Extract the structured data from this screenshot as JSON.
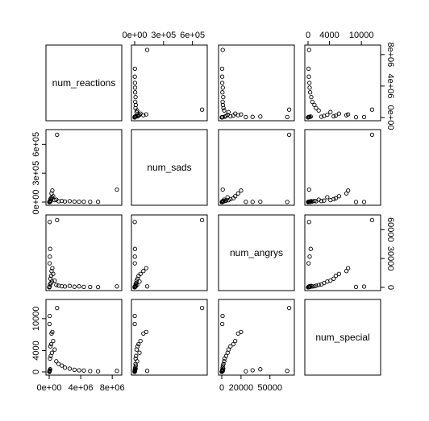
{
  "chart_data": {
    "type": "scatter",
    "subtype": "pairs-matrix",
    "variables": [
      "num_reactions",
      "num_sads",
      "num_angrys",
      "num_special"
    ],
    "ranges": {
      "num_reactions": [
        0,
        8800000
      ],
      "num_sads": [
        0,
        720000
      ],
      "num_angrys": [
        0,
        72000
      ],
      "num_special": [
        0,
        13000
      ]
    },
    "ticks": {
      "num_reactions": {
        "values": [
          0,
          4000000,
          8000000
        ],
        "labels": [
          "0e+00",
          "4e+06",
          "8e+06"
        ]
      },
      "num_sads": {
        "values": [
          0,
          300000,
          600000
        ],
        "labels": [
          "0e+00",
          "3e+05",
          "6e+05"
        ]
      },
      "num_angrys": {
        "values": [
          0,
          20000,
          50000
        ],
        "labels": [
          "0",
          "20000",
          "50000"
        ],
        "right_values": [
          0,
          30000,
          60000
        ],
        "right_labels": [
          "0",
          "30000",
          "60000"
        ]
      },
      "num_special": {
        "values": [
          0,
          4000,
          10000
        ],
        "labels": [
          "0",
          "4000",
          "10000"
        ]
      }
    },
    "points": [
      {
        "num_reactions": 8600000,
        "num_sads": 130000,
        "num_angrys": 1000,
        "num_special": 200
      },
      {
        "num_reactions": 1000000,
        "num_sads": 700000,
        "num_angrys": 70000,
        "num_special": 12000
      },
      {
        "num_reactions": 400000,
        "num_sads": 120000,
        "num_angrys": 20000,
        "num_special": 7500
      },
      {
        "num_reactions": 300000,
        "num_sads": 90000,
        "num_angrys": 17000,
        "num_special": 7200
      },
      {
        "num_reactions": 500000,
        "num_sads": 60000,
        "num_angrys": 14000,
        "num_special": 5800
      },
      {
        "num_reactions": 250000,
        "num_sads": 40000,
        "num_angrys": 12000,
        "num_special": 5200
      },
      {
        "num_reactions": 150000,
        "num_sads": 30000,
        "num_angrys": 9000,
        "num_special": 4800
      },
      {
        "num_reactions": 700000,
        "num_sads": 20000,
        "num_angrys": 7000,
        "num_special": 4200
      },
      {
        "num_reactions": 350000,
        "num_sads": 50000,
        "num_angrys": 6000,
        "num_special": 3600
      },
      {
        "num_reactions": 200000,
        "num_sads": 15000,
        "num_angrys": 4500,
        "num_special": 3000
      },
      {
        "num_reactions": 100000,
        "num_sads": 10000,
        "num_angrys": 3000,
        "num_special": 2500
      },
      {
        "num_reactions": 900000,
        "num_sads": 25000,
        "num_angrys": 2500,
        "num_special": 2000
      },
      {
        "num_reactions": 1200000,
        "num_sads": 8000,
        "num_angrys": 1800,
        "num_special": 1500
      },
      {
        "num_reactions": 1600000,
        "num_sads": 12000,
        "num_angrys": 1200,
        "num_special": 1200
      },
      {
        "num_reactions": 2000000,
        "num_sads": 6000,
        "num_angrys": 900,
        "num_special": 800
      },
      {
        "num_reactions": 2600000,
        "num_sads": 9000,
        "num_angrys": 1500,
        "num_special": 600
      },
      {
        "num_reactions": 3200000,
        "num_sads": 5000,
        "num_angrys": 700,
        "num_special": 400
      },
      {
        "num_reactions": 3800000,
        "num_sads": 4000,
        "num_angrys": 1100,
        "num_special": 300
      },
      {
        "num_reactions": 4400000,
        "num_sads": 3000,
        "num_angrys": 500,
        "num_special": 250
      },
      {
        "num_reactions": 5200000,
        "num_sads": 2000,
        "num_angrys": 400,
        "num_special": 150
      },
      {
        "num_reactions": 6200000,
        "num_sads": 2500,
        "num_angrys": 300,
        "num_special": 100
      },
      {
        "num_reactions": 50000,
        "num_sads": 2000,
        "num_angrys": 25000,
        "num_special": 100
      },
      {
        "num_reactions": 80000,
        "num_sads": 1500,
        "num_angrys": 32000,
        "num_special": 300
      },
      {
        "num_reactions": 120000,
        "num_sads": 3500,
        "num_angrys": 40000,
        "num_special": 500
      },
      {
        "num_reactions": 60000,
        "num_sads": 1000,
        "num_angrys": 68000,
        "num_special": 200
      },
      {
        "num_reactions": 40000,
        "num_sads": 500,
        "num_angrys": 500,
        "num_special": 9000
      },
      {
        "num_reactions": 60000,
        "num_sads": 800,
        "num_angrys": 800,
        "num_special": 10500
      },
      {
        "num_reactions": 20000,
        "num_sads": 300,
        "num_angrys": 200,
        "num_special": 50
      },
      {
        "num_reactions": 30000,
        "num_sads": 200,
        "num_angrys": 100,
        "num_special": 20
      },
      {
        "num_reactions": 10000,
        "num_sads": 100,
        "num_angrys": 50,
        "num_special": 10
      }
    ],
    "grid": false,
    "legend": "none"
  }
}
